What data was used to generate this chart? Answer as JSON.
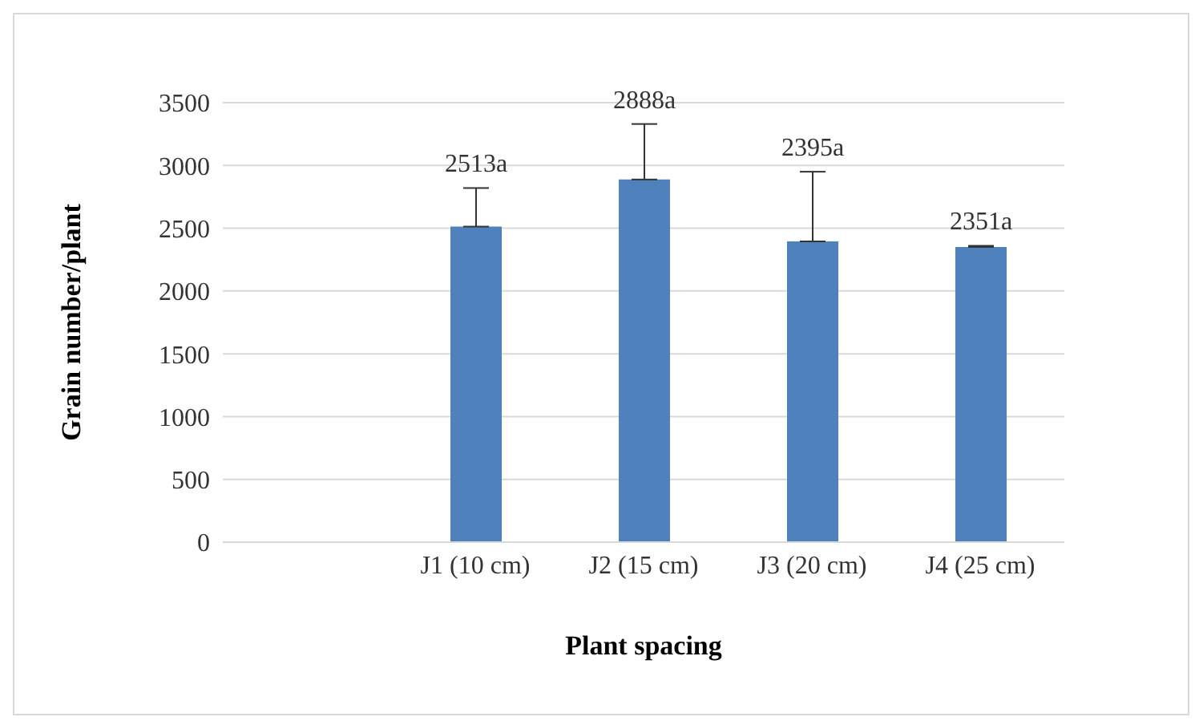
{
  "chart_data": {
    "type": "bar",
    "xlabel": "Plant spacing",
    "ylabel": "Grain number/plant",
    "categories": [
      null,
      "J1 (10 cm)",
      "J2 (15 cm)",
      "J3 (20 cm)",
      "J4 (25 cm)"
    ],
    "values": [
      null,
      2513,
      2888,
      2395,
      2351
    ],
    "value_labels": [
      null,
      "2513a",
      "2888a",
      "2395a",
      "2351a"
    ],
    "errors": [
      null,
      [
        2513,
        2820
      ],
      [
        2888,
        3330
      ],
      [
        2395,
        2950
      ],
      [
        2351,
        2360
      ]
    ],
    "color": "#4f81bd",
    "ylim": [
      0,
      3500
    ],
    "yticks": [
      0,
      500,
      1000,
      1500,
      2000,
      2500,
      3000,
      3500
    ],
    "grid": "y",
    "legend": false
  }
}
